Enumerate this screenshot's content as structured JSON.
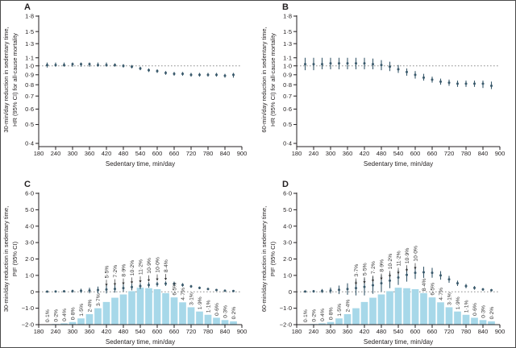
{
  "figure": {
    "background": "#ffffff",
    "border_color": "#4a4a4a"
  },
  "style": {
    "point_color": "#3a5a6c",
    "bar_color": "#a7d8e9",
    "ref_line_color": "#8f8f8f",
    "axis_color": "#231f20",
    "text_color": "#231f20",
    "dist_label_color": "#333333"
  },
  "shared": {
    "xlabel": "Sedentary time, min/day",
    "x_tick_values": [
      180,
      240,
      300,
      360,
      420,
      480,
      540,
      600,
      660,
      720,
      780,
      840,
      900
    ],
    "x_tick_labels": [
      "180",
      "240",
      "300",
      "360",
      "420",
      "480",
      "540",
      "600",
      "660",
      "720",
      "780",
      "840",
      "900"
    ],
    "x_points": [
      210,
      240,
      270,
      300,
      330,
      360,
      390,
      420,
      450,
      480,
      510,
      540,
      570,
      600,
      630,
      660,
      690,
      720,
      750,
      780,
      810,
      840,
      870
    ]
  },
  "chart_data": [
    {
      "panel": "A",
      "type": "scatter",
      "y_scale": "log",
      "ylabel_lines": [
        "30-min/day reduction in sedentary time,",
        "HR (95% CI) for all-cause mortality"
      ],
      "xlabel": "Sedentary time, min/day",
      "xlim": [
        180,
        900
      ],
      "ylim": [
        0.4,
        1.8
      ],
      "y_tick_values": [
        1.8,
        1.5,
        1.3,
        1.1,
        1.0,
        0.9,
        0.8,
        0.7,
        0.6,
        0.5,
        0.4
      ],
      "y_tick_labels": [
        "1·8",
        "1·5",
        "1·3",
        "1·1",
        "1·0",
        "0·9",
        "0·8",
        "0·7",
        "0·6",
        "0·5",
        "0·4"
      ],
      "reference_line": 1.0,
      "x": [
        210,
        240,
        270,
        300,
        330,
        360,
        390,
        420,
        450,
        480,
        510,
        540,
        570,
        600,
        630,
        660,
        690,
        720,
        750,
        780,
        810,
        840,
        870
      ],
      "y": [
        1.01,
        1.01,
        1.01,
        1.02,
        1.02,
        1.02,
        1.01,
        1.01,
        1.01,
        1.0,
        0.99,
        0.97,
        0.95,
        0.94,
        0.92,
        0.91,
        0.91,
        0.9,
        0.9,
        0.9,
        0.9,
        0.89,
        0.9
      ],
      "ci_low": [
        0.98,
        0.99,
        0.99,
        0.99,
        0.99,
        0.99,
        0.99,
        0.99,
        0.99,
        0.98,
        0.97,
        0.95,
        0.93,
        0.92,
        0.9,
        0.89,
        0.89,
        0.88,
        0.88,
        0.88,
        0.88,
        0.87,
        0.87
      ],
      "ci_high": [
        1.04,
        1.04,
        1.04,
        1.04,
        1.04,
        1.04,
        1.04,
        1.04,
        1.03,
        1.02,
        1.01,
        0.99,
        0.97,
        0.96,
        0.94,
        0.93,
        0.93,
        0.92,
        0.92,
        0.92,
        0.92,
        0.91,
        0.92
      ]
    },
    {
      "panel": "B",
      "type": "scatter",
      "y_scale": "log",
      "ylabel_lines": [
        "60-min/day reduction in sedentary time,",
        "HR (95% CI) for all-cause mortality"
      ],
      "xlabel": "Sedentary time, min/day",
      "xlim": [
        180,
        900
      ],
      "ylim": [
        0.4,
        1.8
      ],
      "y_tick_values": [
        1.8,
        1.5,
        1.3,
        1.1,
        1.0,
        0.9,
        0.8,
        0.7,
        0.6,
        0.5,
        0.4
      ],
      "y_tick_labels": [
        "1·8",
        "1·5",
        "1·3",
        "1·1",
        "1·0",
        "0·9",
        "0·8",
        "0·7",
        "0·6",
        "0·5",
        "0·4"
      ],
      "reference_line": 1.0,
      "x": [
        210,
        240,
        270,
        300,
        330,
        360,
        390,
        420,
        450,
        480,
        510,
        540,
        570,
        600,
        630,
        660,
        690,
        720,
        750,
        780,
        810,
        840,
        870
      ],
      "y": [
        1.02,
        1.02,
        1.02,
        1.03,
        1.03,
        1.03,
        1.03,
        1.03,
        1.02,
        1.01,
        0.99,
        0.96,
        0.93,
        0.9,
        0.87,
        0.85,
        0.83,
        0.82,
        0.81,
        0.81,
        0.81,
        0.81,
        0.79
      ],
      "ci_low": [
        0.95,
        0.95,
        0.96,
        0.96,
        0.96,
        0.96,
        0.96,
        0.96,
        0.96,
        0.95,
        0.94,
        0.92,
        0.89,
        0.86,
        0.84,
        0.82,
        0.8,
        0.79,
        0.78,
        0.78,
        0.78,
        0.77,
        0.76
      ],
      "ci_high": [
        1.1,
        1.1,
        1.1,
        1.1,
        1.1,
        1.1,
        1.1,
        1.1,
        1.09,
        1.07,
        1.05,
        1.01,
        0.97,
        0.94,
        0.91,
        0.88,
        0.86,
        0.85,
        0.84,
        0.84,
        0.84,
        0.84,
        0.83
      ]
    },
    {
      "panel": "C",
      "type": "bar+scatter",
      "y_scale": "linear",
      "ylabel_lines": [
        "30-min/day reduction in sedentary time,",
        "PIF (95% CI)"
      ],
      "xlabel": "Sedentary time, min/day",
      "xlim": [
        180,
        900
      ],
      "ylim": [
        -2,
        6
      ],
      "y_tick_values": [
        6,
        5,
        4,
        3,
        2,
        1,
        0,
        -1,
        -2
      ],
      "y_tick_labels": [
        "6·0",
        "5·0",
        "4·0",
        "3·0",
        "2·0",
        "1·0",
        "0",
        "−1·0",
        "−2·0"
      ],
      "reference_line": 0,
      "x": [
        210,
        240,
        270,
        300,
        330,
        360,
        390,
        420,
        450,
        480,
        510,
        540,
        570,
        600,
        630,
        660,
        690,
        720,
        750,
        780,
        810,
        840,
        870
      ],
      "y": [
        0.01,
        0.02,
        0.03,
        0.04,
        0.06,
        0.08,
        0.11,
        0.14,
        0.18,
        0.23,
        0.29,
        0.35,
        0.42,
        0.47,
        0.5,
        0.49,
        0.42,
        0.33,
        0.24,
        0.17,
        0.11,
        0.07,
        0.05
      ],
      "ci_low": [
        -0.01,
        -0.02,
        -0.03,
        -0.05,
        -0.07,
        -0.09,
        -0.1,
        -0.1,
        -0.05,
        0.01,
        0.09,
        0.17,
        0.25,
        0.32,
        0.36,
        0.36,
        0.31,
        0.24,
        0.16,
        0.1,
        0.06,
        0.03,
        0.01
      ],
      "ci_high": [
        0.03,
        0.06,
        0.09,
        0.13,
        0.19,
        0.25,
        0.32,
        0.38,
        0.41,
        0.45,
        0.49,
        0.53,
        0.59,
        0.62,
        0.64,
        0.62,
        0.53,
        0.42,
        0.32,
        0.24,
        0.16,
        0.11,
        0.09
      ],
      "bars": {
        "baseline": -2,
        "top_values": [
          -1.98,
          -1.96,
          -1.92,
          -1.84,
          -1.62,
          -1.36,
          -1.0,
          -0.62,
          -0.36,
          -0.16,
          0.04,
          0.25,
          0.22,
          0.16,
          -0.08,
          -0.34,
          -0.64,
          -0.94,
          -1.2,
          -1.4,
          -1.58,
          -1.72,
          -1.8
        ],
        "distribution_pct": [
          0.1,
          0.2,
          0.4,
          0.8,
          1.5,
          2.4,
          3.7,
          5.5,
          7.2,
          8.9,
          10.2,
          11.2,
          10.9,
          10.0,
          8.4,
          6.5,
          4.7,
          3.1,
          1.9,
          1.1,
          0.6,
          0.3,
          0.2
        ],
        "labels": [
          "0·1%",
          "0·2%",
          "0·4%",
          "0·8%",
          "1·5%",
          "2·4%",
          "3·7%",
          "5·5%",
          "7·2%",
          "8·9%",
          "10·2%",
          "11·2%",
          "10·9%",
          "10·0%",
          "8·4%",
          "6·5%",
          "4·7%",
          "3·1%",
          "1·9%",
          "1·1%",
          "0·6%",
          "0·3%",
          "0·2%"
        ],
        "arrow_from": 420,
        "arrow_to": 630
      }
    },
    {
      "panel": "D",
      "type": "bar+scatter",
      "y_scale": "linear",
      "ylabel_lines": [
        "60-min/day reduction in sedentary time,",
        "PIF (95% CI)"
      ],
      "xlabel": "Sedentary time, min/day",
      "xlim": [
        180,
        900
      ],
      "ylim": [
        -2,
        6
      ],
      "y_tick_values": [
        6,
        5,
        4,
        3,
        2,
        1,
        0,
        -1,
        -2
      ],
      "y_tick_labels": [
        "6·0",
        "5·0",
        "4·0",
        "3·0",
        "2·0",
        "1·0",
        "0",
        "−1·0",
        "−2·0"
      ],
      "reference_line": 0,
      "x": [
        210,
        240,
        270,
        300,
        330,
        360,
        390,
        420,
        450,
        480,
        510,
        540,
        570,
        600,
        630,
        660,
        690,
        720,
        750,
        780,
        810,
        840,
        870
      ],
      "y": [
        0.02,
        0.03,
        0.05,
        0.08,
        0.12,
        0.17,
        0.23,
        0.3,
        0.4,
        0.52,
        0.68,
        0.87,
        1.03,
        1.16,
        1.19,
        1.16,
        1.0,
        0.76,
        0.52,
        0.35,
        0.24,
        0.15,
        0.1
      ],
      "ci_low": [
        -0.04,
        -0.05,
        -0.07,
        -0.1,
        -0.14,
        -0.18,
        -0.22,
        -0.22,
        -0.12,
        0.02,
        0.22,
        0.42,
        0.62,
        0.78,
        0.85,
        0.86,
        0.74,
        0.55,
        0.36,
        0.22,
        0.13,
        0.07,
        0.03
      ],
      "ci_high": [
        0.08,
        0.11,
        0.17,
        0.26,
        0.38,
        0.52,
        0.68,
        0.82,
        0.92,
        1.02,
        1.14,
        1.32,
        1.44,
        1.54,
        1.53,
        1.46,
        1.26,
        0.97,
        0.68,
        0.48,
        0.35,
        0.23,
        0.17
      ],
      "bars": {
        "baseline": -2,
        "top_values": [
          -1.98,
          -1.96,
          -1.92,
          -1.84,
          -1.62,
          -1.36,
          -1.0,
          -0.62,
          -0.36,
          -0.16,
          0.04,
          0.25,
          0.22,
          0.16,
          -0.08,
          -0.34,
          -0.64,
          -0.94,
          -1.2,
          -1.4,
          -1.58,
          -1.72,
          -1.8
        ],
        "distribution_pct": [
          0.1,
          0.2,
          0.4,
          0.8,
          1.5,
          2.4,
          3.7,
          5.5,
          7.2,
          8.9,
          10.2,
          11.2,
          10.9,
          10.0,
          8.4,
          6.5,
          4.7,
          3.1,
          1.9,
          1.1,
          0.6,
          0.3,
          0.2
        ],
        "labels": [
          "0·1%",
          "0·2%",
          "0·4%",
          "0·8%",
          "1·5%",
          "2·4%",
          "3·7%",
          "5·5%",
          "7·2%",
          "8·9%",
          "10·2%",
          "11·2%",
          "10·9%",
          "10·0%",
          "8·4%",
          "6·5%",
          "4·7%",
          "3·1%",
          "1·9%",
          "1·1%",
          "0·6%",
          "0·3%",
          "0·2%"
        ],
        "arrow_from": 390,
        "arrow_to": 600
      }
    }
  ]
}
